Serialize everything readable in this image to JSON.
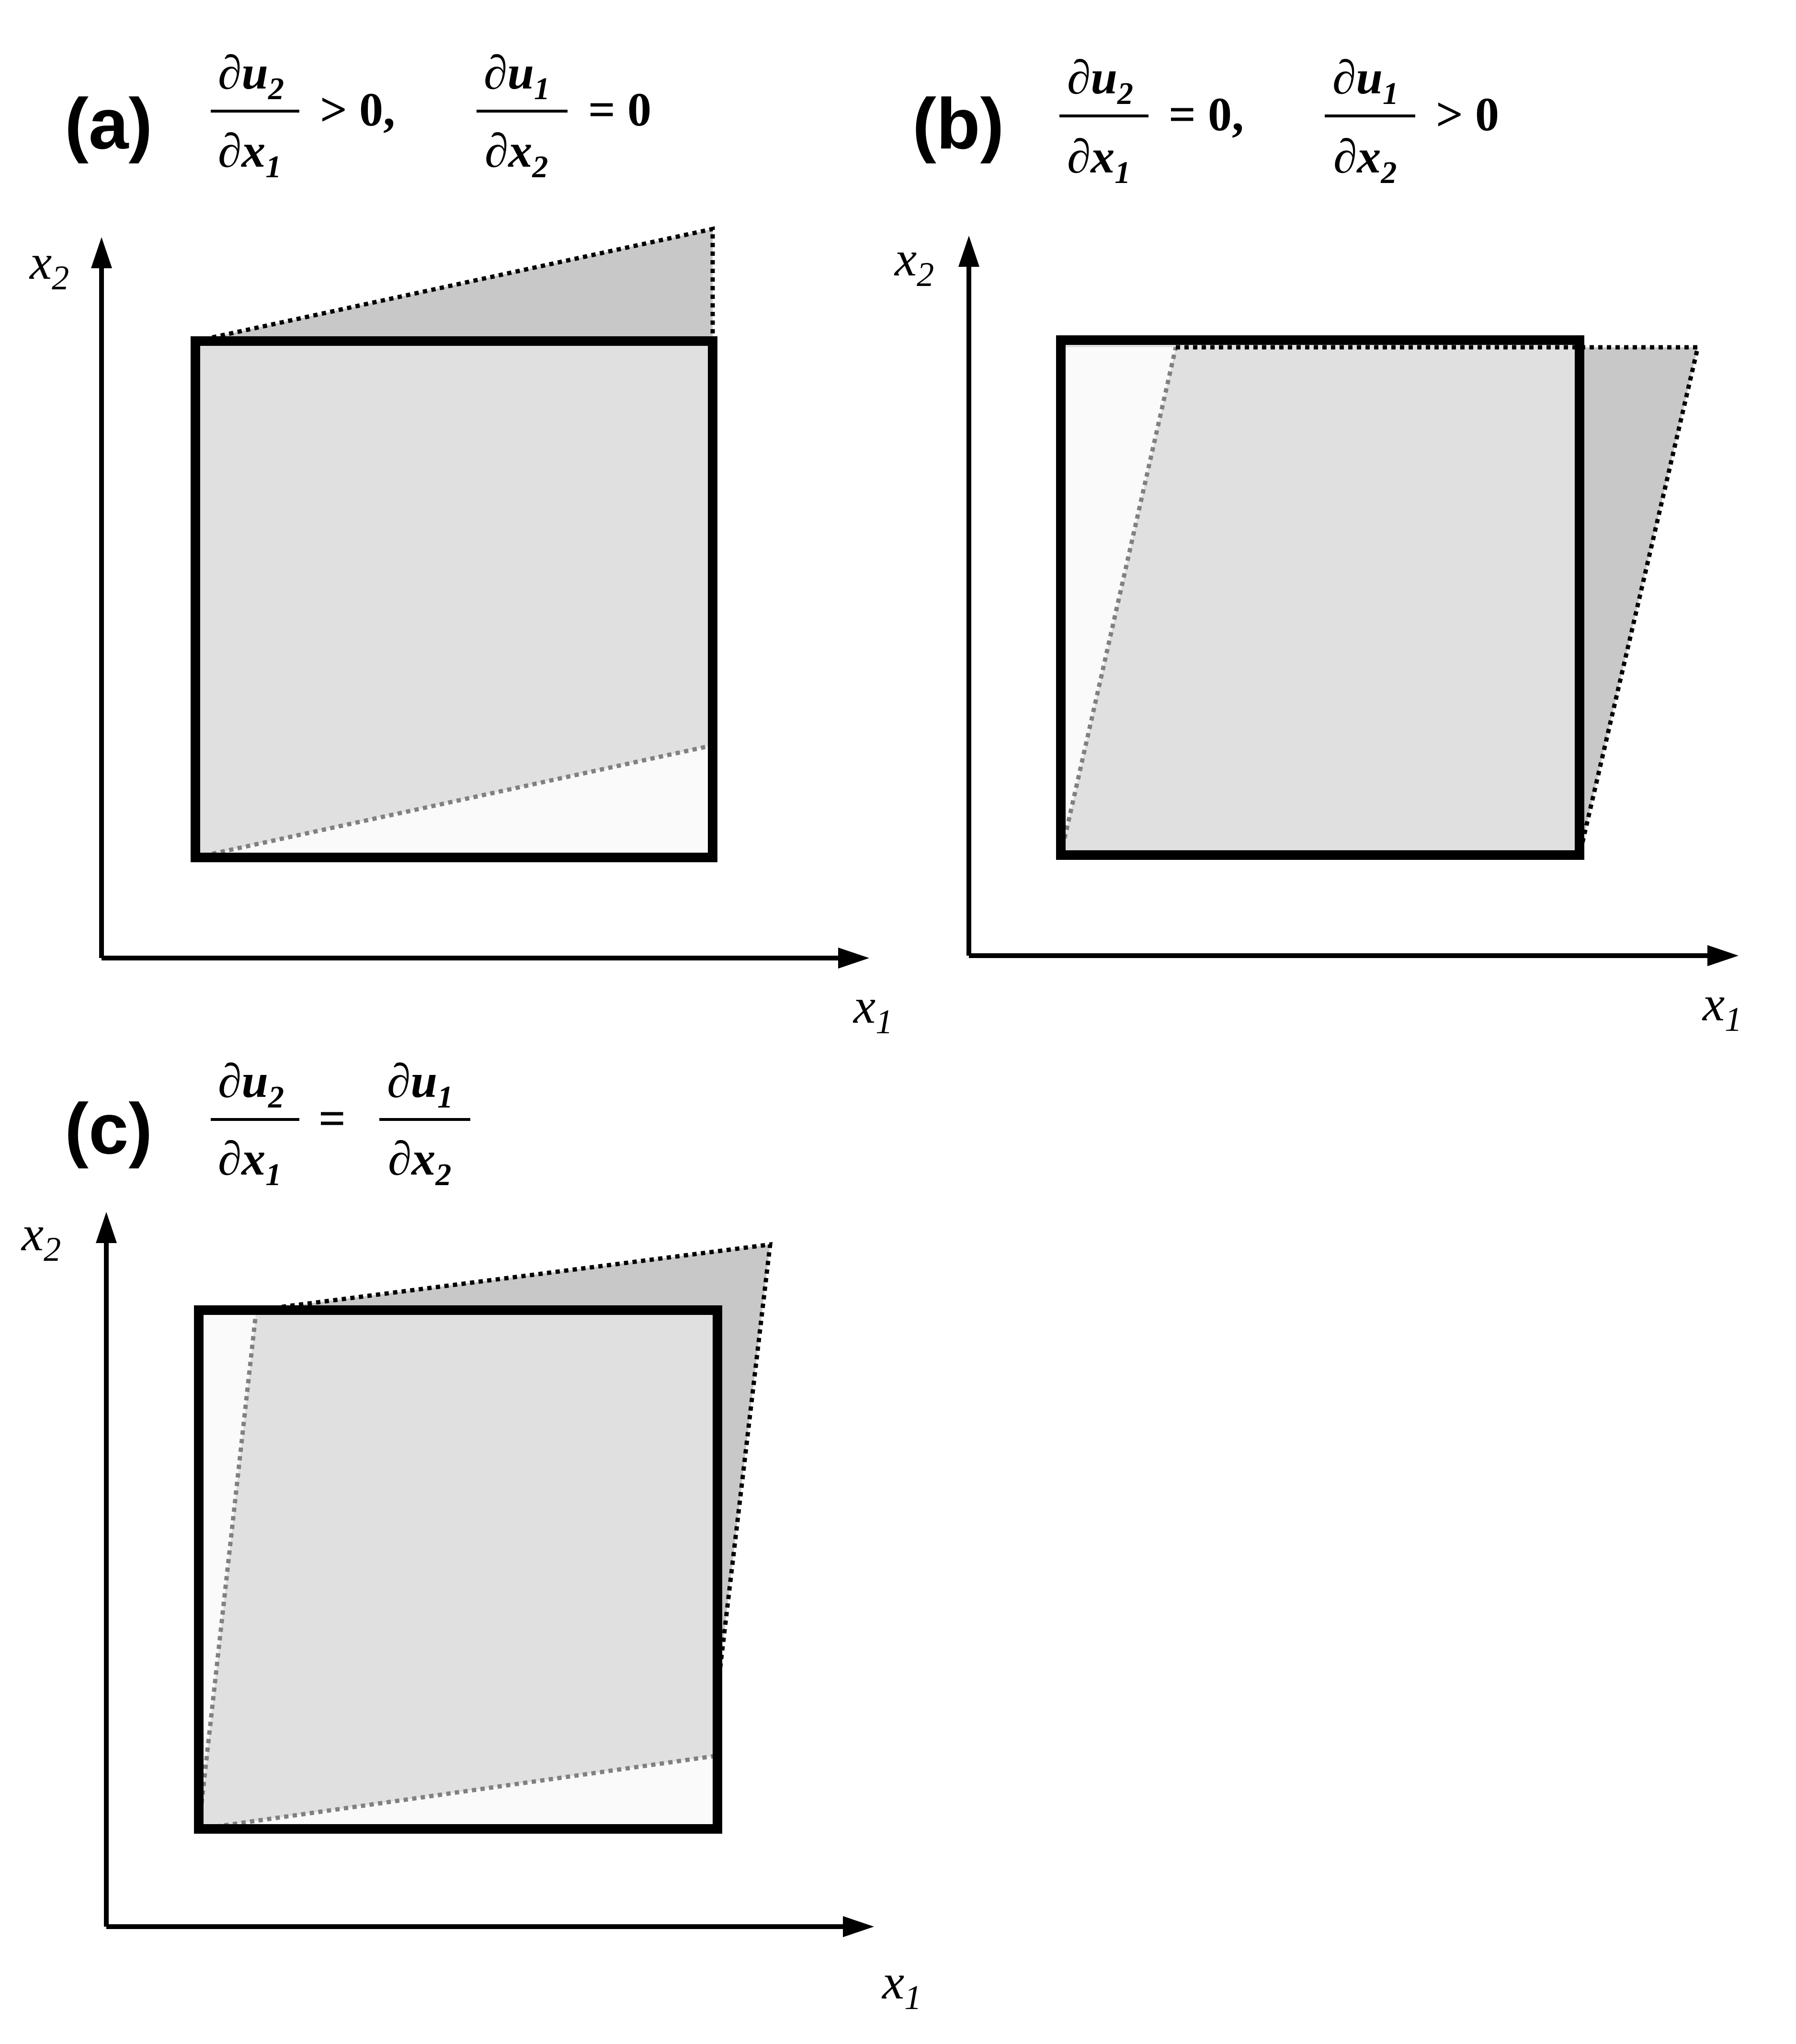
{
  "panels": {
    "a": {
      "label": "(a)",
      "eq": {
        "frac1": {
          "d": "∂",
          "num_var": "u",
          "num_sub": "2",
          "den_var": "x",
          "den_sub": "1"
        },
        "rel1": "> 0,",
        "frac2": {
          "d": "∂",
          "num_var": "u",
          "num_sub": "1",
          "den_var": "x",
          "den_sub": "2"
        },
        "rel2": "= 0"
      },
      "axes": {
        "y_var": "x",
        "y_sub": "2",
        "x_var": "x",
        "x_sub": "1"
      }
    },
    "b": {
      "label": "(b)",
      "eq": {
        "frac1": {
          "d": "∂",
          "num_var": "u",
          "num_sub": "2",
          "den_var": "x",
          "den_sub": "1"
        },
        "rel1": "= 0,",
        "frac2": {
          "d": "∂",
          "num_var": "u",
          "num_sub": "1",
          "den_var": "x",
          "den_sub": "2"
        },
        "rel2": "> 0"
      },
      "axes": {
        "y_var": "x",
        "y_sub": "2",
        "x_var": "x",
        "x_sub": "1"
      }
    },
    "c": {
      "label": "(c)",
      "eq": {
        "frac1": {
          "d": "∂",
          "num_var": "u",
          "num_sub": "2",
          "den_var": "x",
          "den_sub": "1"
        },
        "rel1": "=",
        "frac2": {
          "d": "∂",
          "num_var": "u",
          "num_sub": "1",
          "den_var": "x",
          "den_sub": "2"
        }
      },
      "axes": {
        "y_var": "x",
        "y_sub": "2",
        "x_var": "x",
        "x_sub": "1"
      }
    }
  },
  "colors": {
    "outline": "#000000",
    "undeformed_fill": "#e0e0e0",
    "sheared_out_fill": "#c8c8c8",
    "vacated_fill": "#fafafa",
    "inner_dash": "#808080",
    "outer_dash": "#000000"
  }
}
